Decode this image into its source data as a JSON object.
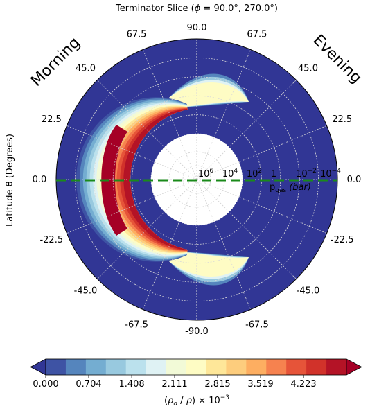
{
  "chart_data": {
    "type": "heatmap",
    "title": "Terminator Slice (ϕ = 90.0°, 270.0°)",
    "title_parts": {
      "prefix": "Terminator Slice (",
      "phi": "ϕ",
      "eq": " = ",
      "angles": "90.0°, 270.0°)"
    },
    "ylabel": "Latitude θ (Degrees)",
    "side_labels": {
      "left": "Morning",
      "right": "Evening"
    },
    "latitude_ticks": [
      {
        "deg": 90,
        "label": "90.0"
      },
      {
        "deg": 67.5,
        "label": "67.5"
      },
      {
        "deg": 45,
        "label": "45.0"
      },
      {
        "deg": 22.5,
        "label": "22.5"
      },
      {
        "deg": 0,
        "label": "0.0"
      },
      {
        "deg": -22.5,
        "label": "-22.5"
      },
      {
        "deg": -45,
        "label": "-45.0"
      },
      {
        "deg": -67.5,
        "label": "-67.5"
      },
      {
        "deg": -90,
        "label": "-90.0"
      }
    ],
    "pressure_ticks": [
      {
        "base": "10",
        "exp": "6"
      },
      {
        "base": "10",
        "exp": "4"
      },
      {
        "base": "10",
        "exp": "2"
      },
      {
        "base": "1",
        "exp": ""
      },
      {
        "base": "10",
        "exp": "−2"
      },
      {
        "base": "10",
        "exp": "−4"
      }
    ],
    "pressure_label": {
      "main": "p",
      "sub": "gas",
      "unit": "(bar)"
    },
    "radial_axis": {
      "scale": "log",
      "range": [
        1000000,
        0.0001
      ]
    },
    "colorbar": {
      "range": [
        0.0,
        4.926
      ],
      "tick_labels": [
        "0.000",
        "0.704",
        "1.408",
        "2.111",
        "2.815",
        "3.519",
        "4.223"
      ],
      "label": "(ρ_d / ρ) × 10⁻³",
      "label_parts": {
        "lp": "(",
        "rho_d": "ρ",
        "d": "d",
        "slash": " / ",
        "rho": "ρ",
        "rp": ")",
        "times": " × 10",
        "exp": "−3"
      },
      "extend": "both",
      "colors": [
        "#313695",
        "#3e53a4",
        "#5585bd",
        "#74add1",
        "#98c9df",
        "#bbe1ed",
        "#dff2f4",
        "#f2fad7",
        "#fefcc4",
        "#fee799",
        "#fdcd7d",
        "#fdae61",
        "#f6824f",
        "#e65439",
        "#d1322a",
        "#b41326",
        "#a50026"
      ]
    },
    "grid": true,
    "reference_line": {
      "latitude": 0,
      "style": "dashed",
      "color": "#1a8a1a"
    },
    "peak_region": "morning limb, 1–10² bar, ±60° latitude"
  }
}
